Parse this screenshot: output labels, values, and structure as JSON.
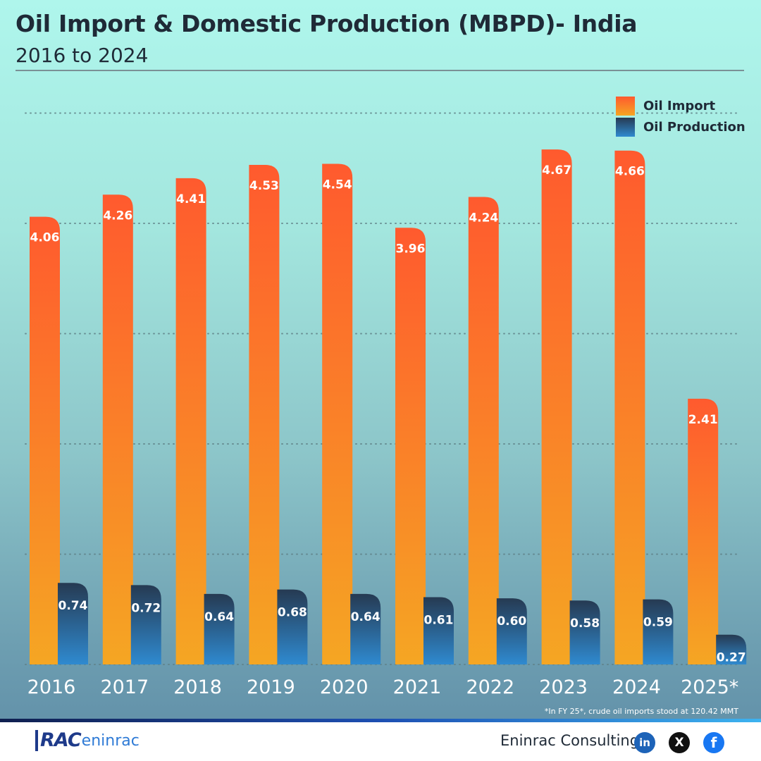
{
  "header": {
    "title": "Oil Import & Domestic Production (MBPD)- India",
    "subtitle": "2016 to 2024"
  },
  "legend": {
    "import_label": "Oil Import",
    "production_label": "Oil Production"
  },
  "chart_data": {
    "type": "bar",
    "categories": [
      "2016",
      "2017",
      "2018",
      "2019",
      "2020",
      "2021",
      "2022",
      "2023",
      "2024",
      "2025*"
    ],
    "series": [
      {
        "name": "Oil Import",
        "values": [
          4.06,
          4.26,
          4.41,
          4.53,
          4.54,
          3.96,
          4.24,
          4.67,
          4.66,
          2.41
        ],
        "labels": [
          "4.06",
          "4.26",
          "4.41",
          "4.53",
          "4.54",
          "3.96",
          "4.24",
          "4.67",
          "4.66",
          "2.41"
        ]
      },
      {
        "name": "Oil Production",
        "values": [
          0.74,
          0.72,
          0.64,
          0.68,
          0.64,
          0.61,
          0.6,
          0.58,
          0.59,
          0.27
        ],
        "labels": [
          "0.74",
          "0.72",
          "0.64",
          "0.68",
          "0.64",
          "0.61",
          "0.60",
          "0.58",
          "0.59",
          "0.27"
        ]
      }
    ],
    "title": "Oil Import & Domestic Production (MBPD)- India",
    "subtitle": "2016 to 2024",
    "ylim": [
      0,
      5
    ],
    "grid": true,
    "legend_position": "top-right",
    "colors": {
      "import_top": "#ff5a2e",
      "import_bottom": "#f5a623",
      "production_top": "#263a52",
      "production_bottom": "#2f8ad0"
    }
  },
  "footnote": "*In FY 25*, crude oil imports stood at 120.42 MMT",
  "footer": {
    "logo_rac": "RAC",
    "logo_eninrac": "eninrac",
    "company": "Eninrac Consulting",
    "social": [
      {
        "name": "linkedin-icon",
        "glyph": "in"
      },
      {
        "name": "x-icon",
        "glyph": "X"
      },
      {
        "name": "facebook-icon",
        "glyph": "f"
      }
    ]
  }
}
